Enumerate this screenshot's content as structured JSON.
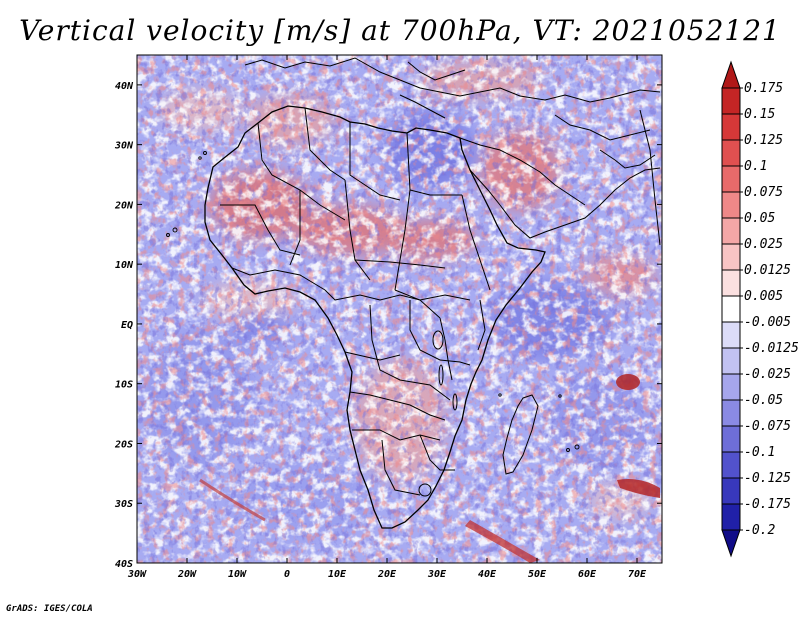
{
  "title": "Vertical velocity [m/s] at 700hPa, VT: 2021052121",
  "credit": "GrADS: IGES/COLA",
  "map": {
    "region": "Africa",
    "variable": "Vertical velocity",
    "units": "m/s",
    "level": "700hPa",
    "valid_time": "2021052121",
    "lon_labels": [
      "30W",
      "20W",
      "10W",
      "0",
      "10E",
      "20E",
      "30E",
      "40E",
      "50E",
      "60E",
      "70E"
    ],
    "lat_labels": [
      "40N",
      "30N",
      "20N",
      "10N",
      "EQ",
      "10S",
      "20S",
      "30S",
      "40S"
    ]
  },
  "colorbar": {
    "levels": [
      "0.175",
      "0.15",
      "0.125",
      "0.1",
      "0.075",
      "0.05",
      "0.025",
      "0.0125",
      "0.005",
      "-0.005",
      "-0.0125",
      "-0.025",
      "-0.05",
      "-0.075",
      "-0.1",
      "-0.125",
      "-0.175",
      "-0.2"
    ],
    "colors": [
      "#b01818",
      "#c42525",
      "#d63838",
      "#e05050",
      "#e86a6a",
      "#ef8888",
      "#f4a7a7",
      "#f8c4c4",
      "#fbe0e0",
      "#ffffff",
      "#dcdcf8",
      "#c2c2f2",
      "#a6a6ec",
      "#8a8ae4",
      "#6e6ed8",
      "#5252cc",
      "#3838bc",
      "#2020a8",
      "#100c88"
    ]
  },
  "colors": {
    "sink_mid": "#9aa0f0",
    "rise_mid": "#e88080",
    "coast": "#000000"
  }
}
